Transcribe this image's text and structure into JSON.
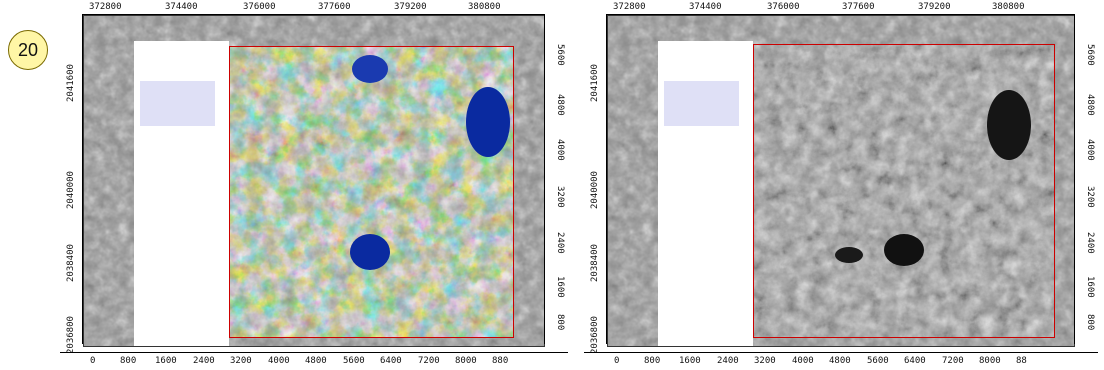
{
  "badge": "20",
  "panels": [
    {
      "name": "false-color",
      "top_ticks": [
        "372800",
        "374400",
        "376000",
        "377600",
        "379200",
        "380800"
      ],
      "left_ticks": [
        "2041600",
        "2040000",
        "2038400",
        "2036800"
      ],
      "right_ticks": [
        "5600",
        "4800",
        "4000",
        "3200",
        "2400",
        "1600",
        "800"
      ],
      "bottom_ticks": [
        "0",
        "800",
        "1600",
        "2400",
        "3200",
        "4000",
        "4800",
        "5600",
        "6400",
        "7200",
        "8000",
        "880"
      ]
    },
    {
      "name": "grayscale",
      "top_ticks": [
        "372800",
        "374400",
        "376000",
        "377600",
        "379200",
        "380800"
      ],
      "left_ticks": [
        "2041600",
        "2040000",
        "2038400",
        "2036800"
      ],
      "right_ticks": [
        "5600",
        "4800",
        "4000",
        "3200",
        "2400",
        "1600",
        "800"
      ],
      "bottom_ticks": [
        "0",
        "800",
        "1600",
        "2400",
        "3200",
        "4000",
        "4800",
        "5600",
        "6400",
        "7200",
        "8000",
        "88"
      ]
    }
  ]
}
